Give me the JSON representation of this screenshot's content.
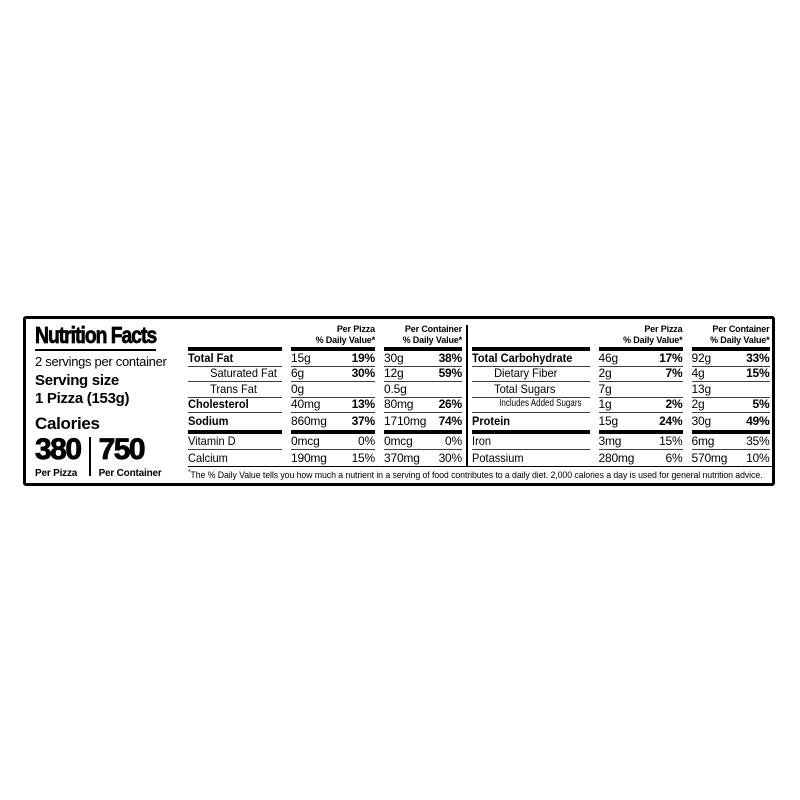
{
  "panel": {
    "title": "Nutrition Facts",
    "servings_per_container": "2 servings per container",
    "serving_size_label": "Serving size",
    "serving_size_value": "1 Pizza (153g)",
    "calories_label": "Calories",
    "calories": [
      {
        "value": "380",
        "unit_label": "Per Pizza"
      },
      {
        "value": "750",
        "unit_label": "Per Container"
      }
    ],
    "column_headers": {
      "col1_line1": "Per Pizza",
      "col1_line2": "% Daily Value*",
      "col2_line1": "Per Container",
      "col2_line2": "% Daily Value*"
    },
    "sections": [
      {
        "name": "fats-sodium-vitamins",
        "rows": [
          {
            "label": "Total Fat",
            "bold": true,
            "indent": 0,
            "small": false,
            "pizza": {
              "amt": "15g",
              "dv": "19%"
            },
            "container": {
              "amt": "30g",
              "dv": "38%"
            },
            "dv_bold": true,
            "thick_after": false
          },
          {
            "label": "Saturated Fat",
            "bold": false,
            "indent": 1,
            "small": false,
            "pizza": {
              "amt": "6g",
              "dv": "30%"
            },
            "container": {
              "amt": "12g",
              "dv": "59%"
            },
            "dv_bold": true,
            "thick_after": false
          },
          {
            "label": "Trans Fat",
            "bold": false,
            "indent": 1,
            "small": false,
            "pizza": {
              "amt": "0g",
              "dv": ""
            },
            "container": {
              "amt": "0.5g",
              "dv": ""
            },
            "dv_bold": false,
            "thick_after": false
          },
          {
            "label": "Cholesterol",
            "bold": true,
            "indent": 0,
            "small": false,
            "pizza": {
              "amt": "40mg",
              "dv": "13%"
            },
            "container": {
              "amt": "80mg",
              "dv": "26%"
            },
            "dv_bold": true,
            "thick_after": false
          },
          {
            "label": "Sodium",
            "bold": true,
            "indent": 0,
            "small": false,
            "pizza": {
              "amt": "860mg",
              "dv": "37%"
            },
            "container": {
              "amt": "1710mg",
              "dv": "74%"
            },
            "dv_bold": true,
            "thick_after": true
          },
          {
            "label": "Vitamin D",
            "bold": false,
            "indent": 0,
            "small": false,
            "pizza": {
              "amt": "0mcg",
              "dv": "0%"
            },
            "container": {
              "amt": "0mcg",
              "dv": "0%"
            },
            "dv_bold": false,
            "thick_after": false
          },
          {
            "label": "Calcium",
            "bold": false,
            "indent": 0,
            "small": false,
            "pizza": {
              "amt": "190mg",
              "dv": "15%"
            },
            "container": {
              "amt": "370mg",
              "dv": "30%"
            },
            "dv_bold": false,
            "thick_after": false
          }
        ]
      },
      {
        "name": "carbs-protein-minerals",
        "rows": [
          {
            "label": "Total Carbohydrate",
            "bold": true,
            "indent": 0,
            "small": false,
            "pizza": {
              "amt": "46g",
              "dv": "17%"
            },
            "container": {
              "amt": "92g",
              "dv": "33%"
            },
            "dv_bold": true,
            "thick_after": false
          },
          {
            "label": "Dietary Fiber",
            "bold": false,
            "indent": 1,
            "small": false,
            "pizza": {
              "amt": "2g",
              "dv": "7%"
            },
            "container": {
              "amt": "4g",
              "dv": "15%"
            },
            "dv_bold": true,
            "thick_after": false
          },
          {
            "label": "Total Sugars",
            "bold": false,
            "indent": 1,
            "small": false,
            "pizza": {
              "amt": "7g",
              "dv": ""
            },
            "container": {
              "amt": "13g",
              "dv": ""
            },
            "dv_bold": false,
            "thick_after": false
          },
          {
            "label": "Includes Added Sugars",
            "bold": false,
            "indent": 2,
            "small": true,
            "pizza": {
              "amt": "1g",
              "dv": "2%"
            },
            "container": {
              "amt": "2g",
              "dv": "5%"
            },
            "dv_bold": true,
            "thick_after": false
          },
          {
            "label": "Protein",
            "bold": true,
            "indent": 0,
            "small": false,
            "pizza": {
              "amt": "15g",
              "dv": "24%"
            },
            "container": {
              "amt": "30g",
              "dv": "49%"
            },
            "dv_bold": true,
            "thick_after": true
          },
          {
            "label": "Iron",
            "bold": false,
            "indent": 0,
            "small": false,
            "pizza": {
              "amt": "3mg",
              "dv": "15%"
            },
            "container": {
              "amt": "6mg",
              "dv": "35%"
            },
            "dv_bold": false,
            "thick_after": false
          },
          {
            "label": "Potassium",
            "bold": false,
            "indent": 0,
            "small": false,
            "pizza": {
              "amt": "280mg",
              "dv": "6%"
            },
            "container": {
              "amt": "570mg",
              "dv": "10%"
            },
            "dv_bold": false,
            "thick_after": false
          }
        ]
      }
    ],
    "footnote_marker": "*",
    "footnote": "The % Daily Value tells you how much a nutrient in a serving of food contributes to a daily diet. 2,000 calories a day is used for general nutrition advice."
  },
  "colors": {
    "text": "#000000",
    "background": "#ffffff",
    "rule": "#3d3d3d"
  }
}
